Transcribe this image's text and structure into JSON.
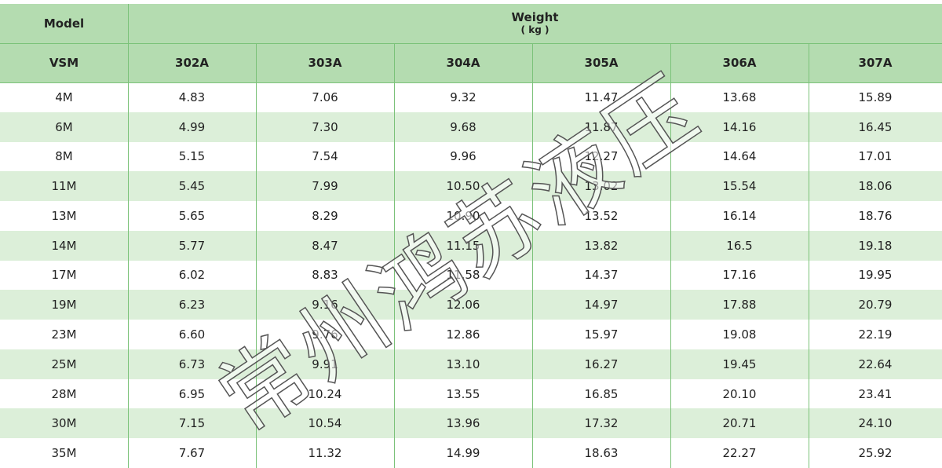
{
  "header": {
    "model": "Model",
    "weight": "Weight",
    "unit": "( kg )"
  },
  "table": {
    "columns": [
      "VSM",
      "302A",
      "303A",
      "304A",
      "305A",
      "306A",
      "307A"
    ],
    "rows": [
      [
        "4M",
        "4.83",
        "7.06",
        "9.32",
        "11.47",
        "13.68",
        "15.89"
      ],
      [
        "6M",
        "4.99",
        "7.30",
        "9.68",
        "11.87",
        "14.16",
        "16.45"
      ],
      [
        "8M",
        "5.15",
        "7.54",
        "9.96",
        "12.27",
        "14.64",
        "17.01"
      ],
      [
        "11M",
        "5.45",
        "7.99",
        "10.50",
        "13.02",
        "15.54",
        "18.06"
      ],
      [
        "13M",
        "5.65",
        "8.29",
        "10.90",
        "13.52",
        "16.14",
        "18.76"
      ],
      [
        "14M",
        "5.77",
        "8.47",
        "11.15",
        "13.82",
        "16.5",
        "19.18"
      ],
      [
        "17M",
        "6.02",
        "8.83",
        "11.58",
        "14.37",
        "17.16",
        "19.95"
      ],
      [
        "19M",
        "6.23",
        "9.16",
        "12.06",
        "14.97",
        "17.88",
        "20.79"
      ],
      [
        "23M",
        "6.60",
        "9.76",
        "12.86",
        "15.97",
        "19.08",
        "22.19"
      ],
      [
        "25M",
        "6.73",
        "9.91",
        "13.10",
        "16.27",
        "19.45",
        "22.64"
      ],
      [
        "28M",
        "6.95",
        "10.24",
        "13.55",
        "16.85",
        "20.10",
        "23.41"
      ],
      [
        "30M",
        "7.15",
        "10.54",
        "13.96",
        "17.32",
        "20.71",
        "24.10"
      ],
      [
        "35M",
        "7.67",
        "11.32",
        "14.99",
        "18.63",
        "22.27",
        "25.92"
      ]
    ]
  },
  "watermark": "常州鸿苏液压"
}
